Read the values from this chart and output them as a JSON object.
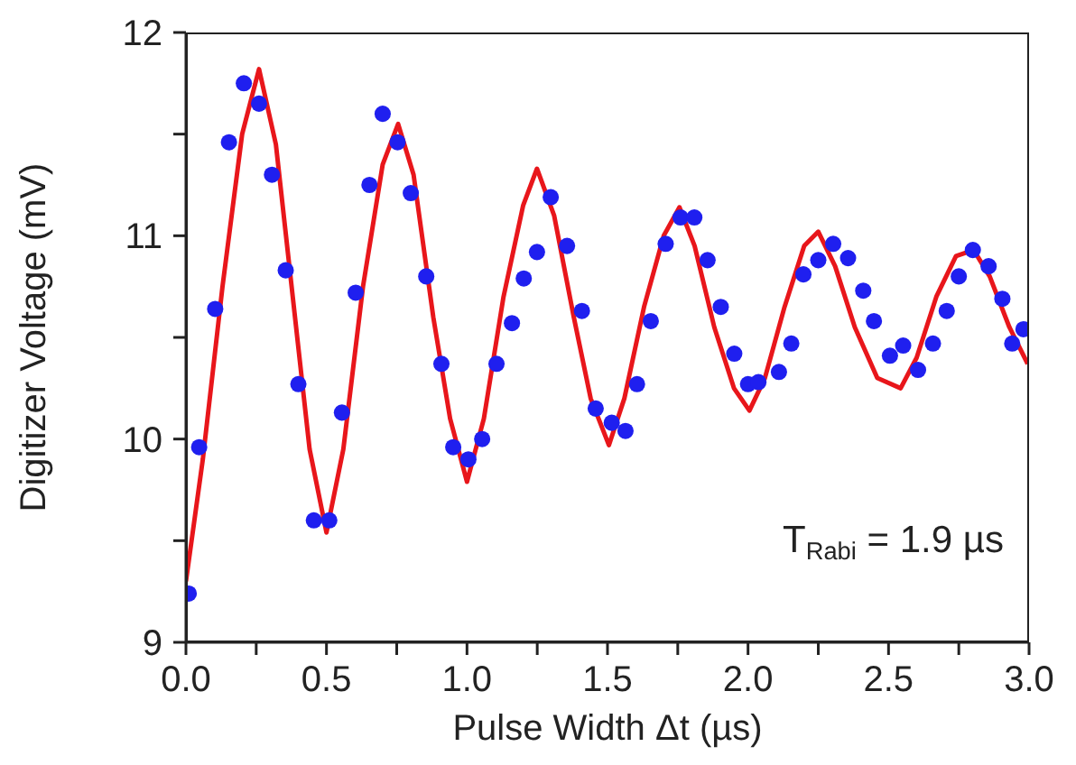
{
  "chart_data": {
    "type": "scatter",
    "xlabel": "Pulse Width Δt (µs)",
    "ylabel": "Digitizer Voltage (mV)",
    "annotations": [
      "T$_{Rabi}$ = 1.9 µs"
    ],
    "xlim": [
      0,
      3
    ],
    "ylim": [
      9,
      12
    ],
    "xticks": [
      {
        "value": 0,
        "label": "0.0"
      },
      {
        "value": 0.25,
        "label": null
      },
      {
        "value": 0.5,
        "label": "0.5"
      },
      {
        "value": 0.75,
        "label": null
      },
      {
        "value": 1,
        "label": "1.0"
      },
      {
        "value": 1.25,
        "label": null
      },
      {
        "value": 1.5,
        "label": "1.5"
      },
      {
        "value": 1.75,
        "label": null
      },
      {
        "value": 2,
        "label": "2.0"
      },
      {
        "value": 2.25,
        "label": null
      },
      {
        "value": 2.5,
        "label": "2.5"
      },
      {
        "value": 2.75,
        "label": null
      },
      {
        "value": 3,
        "label": "3.0"
      }
    ],
    "yticks": [
      9,
      {
        "value": 9.5,
        "label": null
      },
      10,
      {
        "value": 10.5,
        "label": null
      },
      11,
      {
        "value": 11.5,
        "label": null
      },
      12
    ],
    "grid": false,
    "legend": false,
    "series": [
      {
        "color": "#1f1fef",
        "marker": "circle",
        "x": [
          0.01,
          0.047,
          0.104,
          0.153,
          0.206,
          0.26,
          0.306,
          0.355,
          0.4,
          0.455,
          0.51,
          0.555,
          0.604,
          0.653,
          0.7,
          0.753,
          0.8,
          0.855,
          0.909,
          0.951,
          1.005,
          1.054,
          1.105,
          1.16,
          1.202,
          1.249,
          1.298,
          1.356,
          1.409,
          1.458,
          1.515,
          1.564,
          1.605,
          1.654,
          1.707,
          1.76,
          1.809,
          1.856,
          1.903,
          1.951,
          2.0,
          2.037,
          2.11,
          2.154,
          2.197,
          2.25,
          2.303,
          2.356,
          2.41,
          2.448,
          2.505,
          2.552,
          2.605,
          2.658,
          2.707,
          2.75,
          2.8,
          2.856,
          2.905,
          2.94,
          2.98
        ],
        "values": [
          9.24,
          9.96,
          10.64,
          11.46,
          11.75,
          11.65,
          11.3,
          10.83,
          10.27,
          9.6,
          9.6,
          10.13,
          10.72,
          11.25,
          11.6,
          11.46,
          11.21,
          10.8,
          10.37,
          9.96,
          9.9,
          10.0,
          10.37,
          10.57,
          10.79,
          10.92,
          11.19,
          10.95,
          10.63,
          10.15,
          10.08,
          10.04,
          10.27,
          10.58,
          10.96,
          11.09,
          11.09,
          10.88,
          10.65,
          10.42,
          10.27,
          10.28,
          10.33,
          10.47,
          10.81,
          10.88,
          10.96,
          10.89,
          10.73,
          10.58,
          10.41,
          10.46,
          10.34,
          10.47,
          10.63,
          10.8,
          10.93,
          10.85,
          10.69,
          10.47,
          10.54
        ]
      },
      {
        "type": "line",
        "color": "#e8161b",
        "marker": "none",
        "line_style": "solid",
        "x": [
          0,
          0.06,
          0.13,
          0.2,
          0.26,
          0.32,
          0.38,
          0.44,
          0.5,
          0.56,
          0.63,
          0.7,
          0.755,
          0.81,
          0.88,
          0.94,
          1.0,
          1.06,
          1.13,
          1.2,
          1.249,
          1.31,
          1.38,
          1.44,
          1.505,
          1.56,
          1.63,
          1.7,
          1.756,
          1.81,
          1.88,
          1.95,
          2.005,
          2.06,
          2.13,
          2.2,
          2.25,
          2.31,
          2.38,
          2.46,
          2.543,
          2.6,
          2.67,
          2.74,
          2.803,
          2.86,
          2.93,
          2.995
        ],
        "values": [
          9.3,
          9.9,
          10.75,
          11.5,
          11.82,
          11.45,
          10.7,
          9.95,
          9.54,
          9.95,
          10.75,
          11.35,
          11.55,
          11.3,
          10.6,
          10.1,
          9.79,
          10.1,
          10.7,
          11.15,
          11.33,
          11.1,
          10.6,
          10.2,
          9.97,
          10.2,
          10.65,
          11.0,
          11.14,
          10.95,
          10.55,
          10.25,
          10.14,
          10.3,
          10.65,
          10.95,
          11.02,
          10.85,
          10.55,
          10.3,
          10.25,
          10.4,
          10.7,
          10.9,
          10.93,
          10.8,
          10.55,
          10.37
        ]
      }
    ]
  }
}
